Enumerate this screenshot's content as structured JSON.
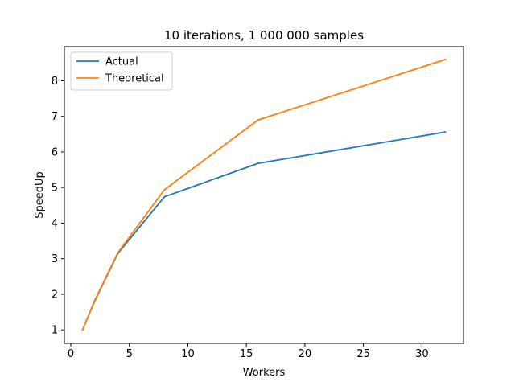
{
  "chart_data": {
    "type": "line",
    "title": "10 iterations, 1 000 000 samples",
    "xlabel": "Workers",
    "ylabel": "SpeedUp",
    "xlim": [
      -0.55,
      33.55
    ],
    "ylim": [
      0.62,
      8.96
    ],
    "xticks": [
      0,
      5,
      10,
      15,
      20,
      25,
      30
    ],
    "yticks": [
      1,
      2,
      3,
      4,
      5,
      6,
      7,
      8
    ],
    "grid": false,
    "legend_position": "top-left",
    "series": [
      {
        "name": "Actual",
        "color": "#1f77b4",
        "x": [
          1,
          2,
          4,
          8,
          16,
          32
        ],
        "y": [
          1.0,
          1.78,
          3.14,
          4.74,
          5.68,
          6.56
        ]
      },
      {
        "name": "Theoretical",
        "color": "#ff7f0e",
        "x": [
          1,
          2,
          4,
          8,
          16,
          32
        ],
        "y": [
          1.0,
          1.8,
          3.16,
          4.94,
          6.9,
          8.6
        ]
      }
    ]
  }
}
